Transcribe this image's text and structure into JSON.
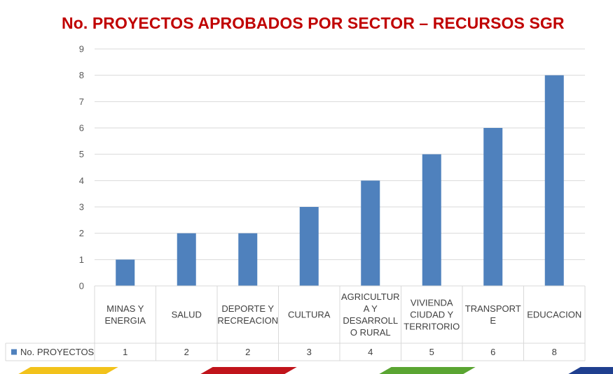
{
  "title": "No. PROYECTOS APROBADOS POR SECTOR – RECURSOS SGR",
  "chart_data": {
    "type": "bar",
    "title": "No. PROYECTOS APROBADOS POR SECTOR – RECURSOS SGR",
    "categories": [
      [
        "MINAS Y",
        "ENERGIA"
      ],
      [
        "SALUD"
      ],
      [
        "DEPORTE Y",
        "RECREACION"
      ],
      [
        "CULTURA"
      ],
      [
        "AGRICULTUR",
        "A Y",
        "DESARROLL",
        "O RURAL"
      ],
      [
        "VIVIENDA",
        "CIUDAD Y",
        "TERRITORIO"
      ],
      [
        "TRANSPORT",
        "E"
      ],
      [
        "EDUCACION"
      ]
    ],
    "series": [
      {
        "name": "No. PROYECTOS",
        "values": [
          1,
          2,
          2,
          3,
          4,
          5,
          6,
          8
        ],
        "color": "#4f81bd"
      }
    ],
    "ylim": [
      0,
      9
    ],
    "yticks": [
      0,
      1,
      2,
      3,
      4,
      5,
      6,
      7,
      8,
      9
    ],
    "grid": true,
    "data_table": true
  },
  "colors": {
    "title": "#c00000",
    "bar": "#4f81bd",
    "grid": "#d9d9d9",
    "table_border": "#d9d9d9"
  }
}
